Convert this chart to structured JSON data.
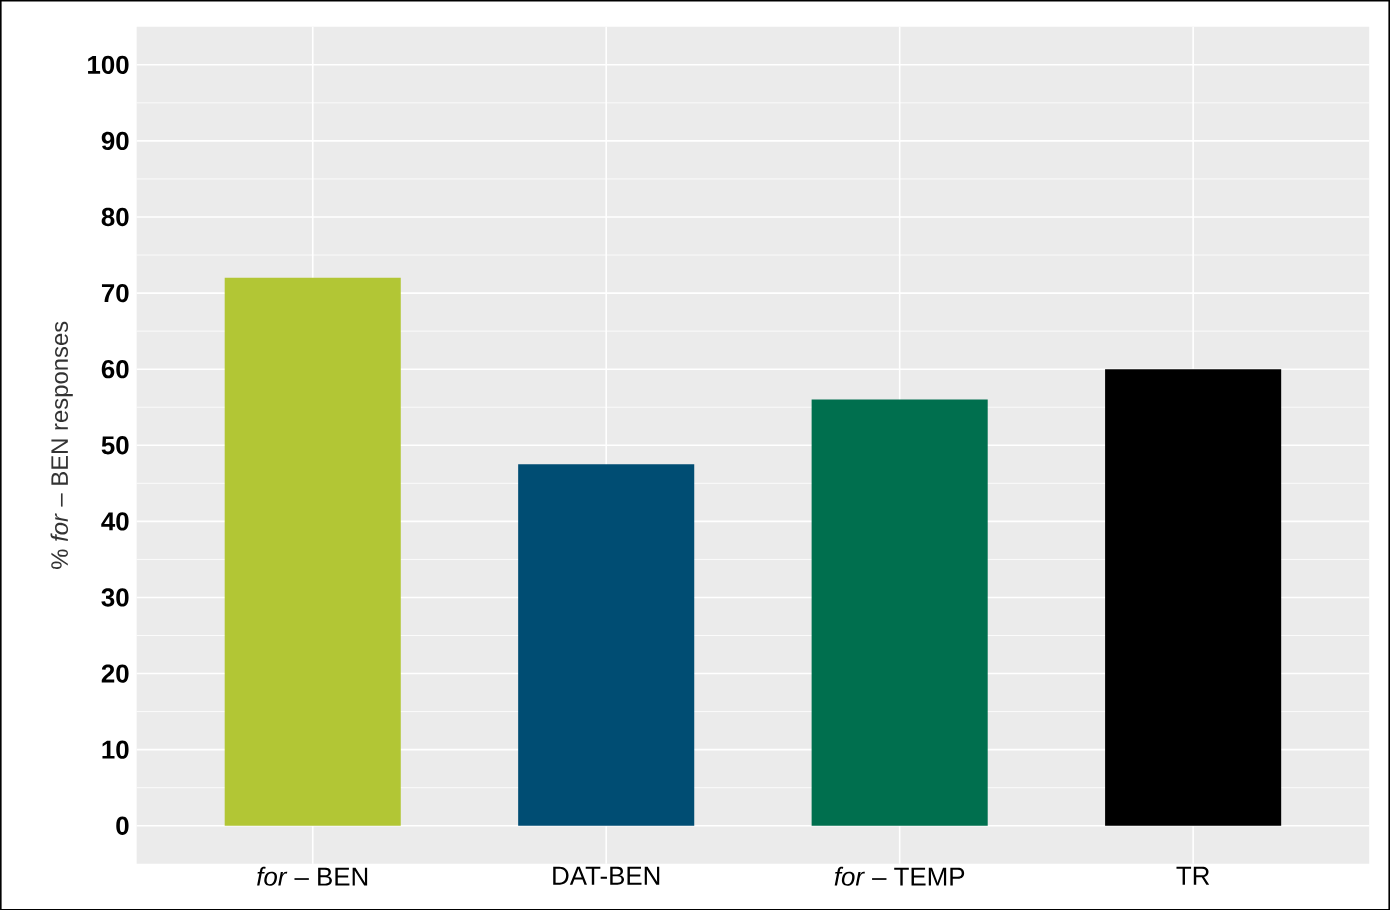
{
  "chart_data": {
    "type": "bar",
    "ylabel": "% *for* – BEN  responses",
    "categories": [
      "*for* – BEN",
      "DAT-BEN",
      "*for* – TEMP",
      "TR"
    ],
    "values": [
      72,
      47.5,
      56,
      60
    ],
    "colors": [
      "#b2c635",
      "#004d73",
      "#006f4e",
      "#000000"
    ],
    "ylim": [
      -5,
      105
    ],
    "yticks": [
      0,
      10,
      20,
      30,
      40,
      50,
      60,
      70,
      80,
      90,
      100
    ],
    "grid": true
  }
}
